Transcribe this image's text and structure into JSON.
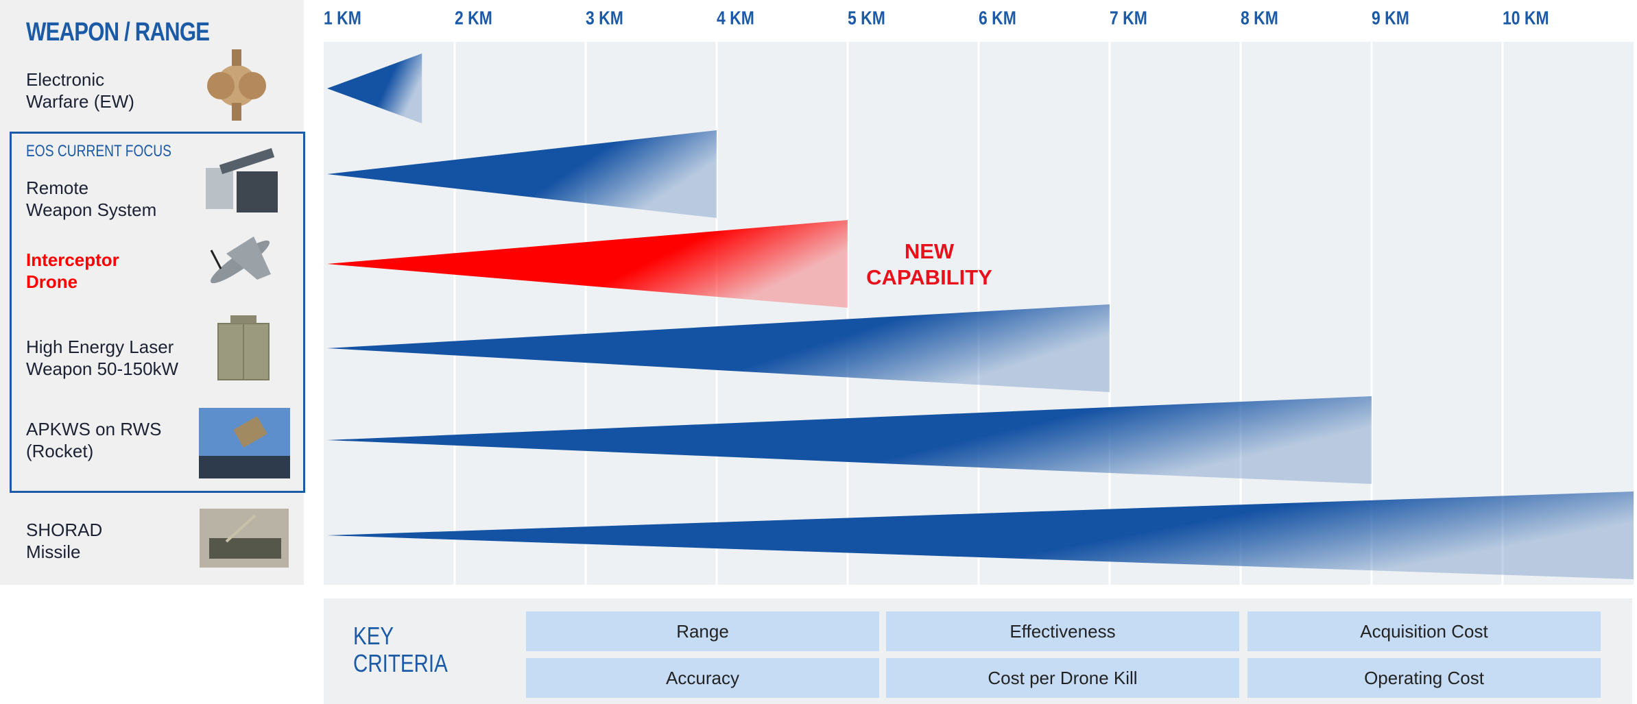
{
  "chart_data": {
    "type": "wedge",
    "title": "WEAPON / RANGE",
    "group_label": "EOS CURRENT FOCUS",
    "categories": [
      "Electronic\nWarfare (EW)",
      "Remote\nWeapon System",
      "Interceptor\nDrone",
      "High Energy Laser\nWeapon 50-150kW",
      "APKWS on RWS\n(Rocket)",
      "SHORAD\nMissile"
    ],
    "values": [
      1.75,
      4,
      5,
      7,
      9,
      11
    ],
    "colors": [
      "#1452a3",
      "#1452a3",
      "#ff0000",
      "#1452a3",
      "#1452a3",
      "#1452a3"
    ],
    "annotation": "NEW\nCAPABILITY",
    "xlim": [
      1,
      11
    ],
    "xticks": [
      {
        "value": 1,
        "label": "1 KM"
      },
      {
        "value": 2,
        "label": "2 KM"
      },
      {
        "value": 3,
        "label": "3 KM"
      },
      {
        "value": 4,
        "label": "4 KM"
      },
      {
        "value": 5,
        "label": "5 KM"
      },
      {
        "value": 6,
        "label": "6 KM"
      },
      {
        "value": 7,
        "label": "7 KM"
      },
      {
        "value": 8,
        "label": "8 KM"
      },
      {
        "value": 9,
        "label": "9 KM"
      },
      {
        "value": 10,
        "label": "10 KM"
      }
    ],
    "grid": true
  },
  "key_criteria": {
    "title": "KEY\nCRITERIA",
    "items": [
      "Range",
      "Effectiveness",
      "Acquisition Cost",
      "Accuracy",
      "Cost per Drone Kill",
      "Operating Cost"
    ]
  }
}
